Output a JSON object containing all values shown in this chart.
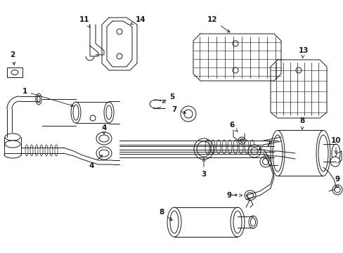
{
  "bg_color": "#ffffff",
  "fig_width": 4.89,
  "fig_height": 3.6,
  "dpi": 100,
  "line_color": "#1a1a1a",
  "lw": 0.7
}
